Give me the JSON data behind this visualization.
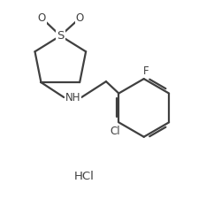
{
  "bg_color": "#ffffff",
  "line_color": "#404040",
  "line_width": 1.6,
  "fig_width": 2.33,
  "fig_height": 2.25,
  "dpi": 100,
  "hcl_label": "HCl",
  "f_label": "F",
  "cl_label": "Cl",
  "nh_label": "NH",
  "s_label": "S",
  "o1_label": "O",
  "o2_label": "O",
  "font_size": 8.5
}
